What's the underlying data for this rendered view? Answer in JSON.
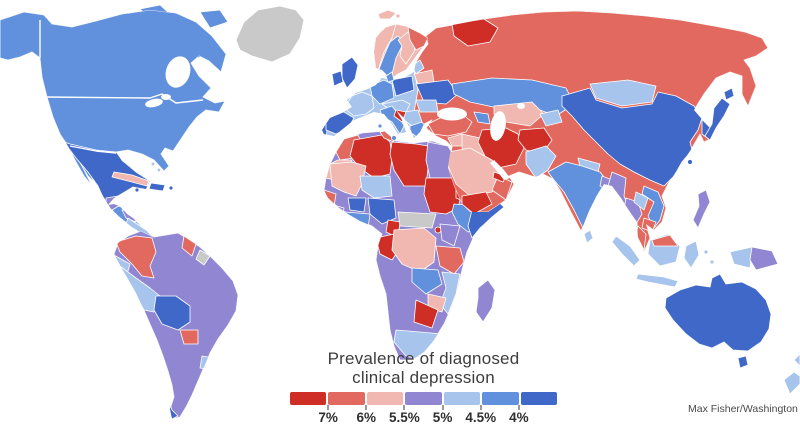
{
  "title": {
    "line1": "Prevalence of diagnosed",
    "line2": "clinical depression"
  },
  "legend": {
    "labels": [
      "7%",
      "6%",
      "5.5%",
      "5%",
      "4.5%",
      "4%"
    ],
    "swatches": [
      "#cf2e27",
      "#e2695f",
      "#f0b8b0",
      "#9186d2",
      "#a7c4ed",
      "#6191dd",
      "#3f68c8"
    ]
  },
  "attribution": "Max Fisher/Washington",
  "map": {
    "ocean_color": "#ffffff",
    "palette": {
      "red7": "#cf2e27",
      "red6": "#e2695f",
      "pink55": "#f0b8b0",
      "purple5": "#9186d2",
      "blue45": "#a7c4ed",
      "blue4": "#6191dd",
      "blue35": "#3f68c8",
      "nodata": "#c9c9c9"
    },
    "regions": {
      "greenland": "nodata",
      "arctic-islands": "blue4",
      "canada-usa": "blue4",
      "mexico": "blue35",
      "guatemala": "purple5",
      "honduras": "red7",
      "nicaragua": "purple5",
      "costa-rica-panama": "blue45",
      "cuba": "pink55",
      "hispaniola": "blue35",
      "jamaica": "blue35",
      "puerto-rico": "blue35",
      "bahamas": "blue45",
      "south-america-base": "purple5",
      "colombia": "red6",
      "guyana": "red6",
      "french-guiana": "nodata",
      "ecuador": "blue45",
      "peru": "blue45",
      "bolivia": "blue35",
      "paraguay": "red6",
      "chile": "blue35",
      "uruguay": "blue45",
      "africa-base": "purple5",
      "morocco": "red6",
      "western-sahara": "pink55",
      "algeria": "red7",
      "tunisia": "red6",
      "libya": "red7",
      "egypt": "purple5",
      "mali": "pink55",
      "senegal": "red6",
      "guinea": "purple5",
      "niger": "blue45",
      "burkina-faso": "blue35",
      "ghana-ivory-coast": "blue4",
      "nigeria": "blue35",
      "cameroon": "red7",
      "car-south-sudan": "nodata",
      "sudan": "red7",
      "eritrea": "red7",
      "ethiopia": "blue4",
      "somalia": "blue35",
      "gabon-congo": "red7",
      "drc": "pink55",
      "uganda": "red7",
      "kenya": "purple5",
      "tanzania": "red6",
      "zambia": "blue4",
      "mozambique": "blue45",
      "zimbabwe": "pink55",
      "botswana": "red7",
      "south-africa": "blue45",
      "madagascar": "purple5",
      "eurasia-base": "red6",
      "western-europe-underlay": "blue45",
      "novaya-zemlya": "red7",
      "scandinavia-base": "pink55",
      "norway": "pink55",
      "sweden": "blue4",
      "finland": "pink55",
      "kola-russia": "red6",
      "denmark": "blue4",
      "svalbard": "pink55",
      "uk": "blue35",
      "ireland": "blue35",
      "portugal": "blue35",
      "spain": "blue35",
      "france": "blue45",
      "germany-benelux": "blue4",
      "italy": "blue4",
      "sicily": "blue4",
      "central-europe": "blue45",
      "croatia": "red7",
      "balkans": "blue45",
      "greece": "blue4",
      "poland": "blue35",
      "baltics": "blue45",
      "belarus": "pink55",
      "ukraine": "blue35",
      "romania": "blue45",
      "turkey": "red6",
      "caucasus": "blue4",
      "syria": "pink55",
      "levant-israel": "blue4",
      "iraq": "pink55",
      "iran": "red7",
      "afghanistan": "red7",
      "pakistan": "blue45",
      "saudi-arabia": "pink55",
      "yemen": "red7",
      "oman": "red6",
      "uae": "red7",
      "central-asia": "pink55",
      "kazakhstan": "blue4",
      "kyrgyzstan-tajikistan": "blue45",
      "mongolia": "blue45",
      "china": "blue35",
      "nepal-bhutan": "blue45",
      "india": "blue4",
      "bangladesh": "purple5",
      "sri-lanka": "blue45",
      "myanmar": "purple5",
      "thailand": "purple5",
      "laos": "blue45",
      "vietnam": "blue4",
      "cambodia": "red6",
      "malaysia": "red6",
      "korea": "blue35",
      "japan": "blue35",
      "taiwan": "blue35",
      "philippines": "purple5",
      "sumatra": "blue45",
      "java": "blue45",
      "borneo": "blue45",
      "malaysia-borneo": "red6",
      "sulawesi": "blue45",
      "moluccas": "blue45",
      "new-guinea-west": "blue45",
      "papua-new-guinea": "purple5",
      "australia": "blue35",
      "tasmania": "blue35",
      "new-zealand": "blue45"
    }
  }
}
